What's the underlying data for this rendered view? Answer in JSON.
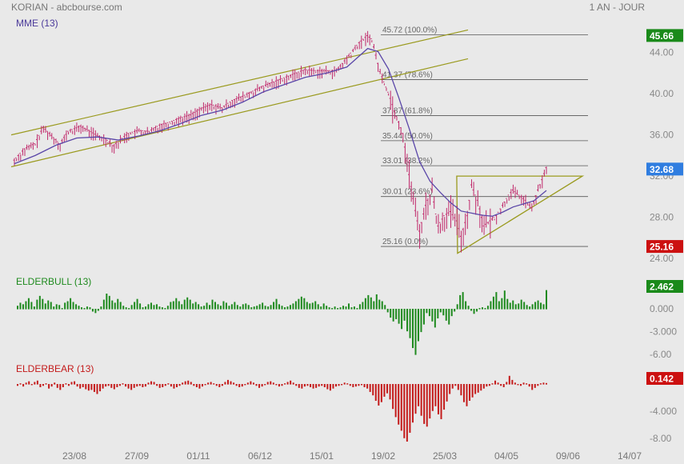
{
  "header": {
    "title": "KORIAN - abcbourse.com",
    "period": "1 AN - JOUR"
  },
  "chart_data": [
    {
      "panel": "price",
      "type": "candlestick",
      "indicator_label": "MME (13)",
      "ylim": [
        24,
        46
      ],
      "yticks": [
        "44.00",
        "40.00",
        "36.00",
        "32.00",
        "28.00",
        "24.00"
      ],
      "last_price": "32.68",
      "badges": [
        {
          "text": "45.66",
          "color": "#1a8a1a",
          "value": 45.66
        },
        {
          "text": "32.68",
          "color": "#2f7de0",
          "value": 32.68
        },
        {
          "text": "25.16",
          "color": "#cc1010",
          "value": 25.16
        }
      ],
      "fibonacci": [
        {
          "price": 45.72,
          "label": "45.72  (100.0%)"
        },
        {
          "price": 41.37,
          "label": "41.37  (78.6%)"
        },
        {
          "price": 37.87,
          "label": "37.87  (61.8%)"
        },
        {
          "price": 35.44,
          "label": "35.44  (50.0%)"
        },
        {
          "price": 33.01,
          "label": "33.01  (38.2%)"
        },
        {
          "price": 30.01,
          "label": "30.01  (23.6%)"
        },
        {
          "price": 25.16,
          "label": "25.16  (0.0%)"
        }
      ],
      "price_path": [
        [
          0,
          33.4
        ],
        [
          5,
          34.5
        ],
        [
          10,
          35.0
        ],
        [
          14,
          36.6
        ],
        [
          18,
          35.8
        ],
        [
          22,
          35.0
        ],
        [
          26,
          36.2
        ],
        [
          32,
          36.7
        ],
        [
          36,
          36.3
        ],
        [
          40,
          35.8
        ],
        [
          44,
          35.5
        ],
        [
          48,
          34.8
        ],
        [
          50,
          35.2
        ],
        [
          55,
          36.0
        ],
        [
          60,
          36.3
        ],
        [
          65,
          36.2
        ],
        [
          70,
          36.8
        ],
        [
          75,
          37.1
        ],
        [
          80,
          37.5
        ],
        [
          85,
          37.8
        ],
        [
          90,
          38.4
        ],
        [
          95,
          38.8
        ],
        [
          100,
          38.5
        ],
        [
          105,
          39.2
        ],
        [
          110,
          39.6
        ],
        [
          115,
          40.1
        ],
        [
          120,
          40.6
        ],
        [
          125,
          41.0
        ],
        [
          130,
          41.4
        ],
        [
          135,
          41.8
        ],
        [
          140,
          42.2
        ],
        [
          145,
          42.1
        ],
        [
          150,
          42.1
        ],
        [
          155,
          42.1
        ],
        [
          158,
          42.8
        ],
        [
          162,
          43.8
        ],
        [
          166,
          44.8
        ],
        [
          170,
          45.5
        ],
        [
          172,
          45.2
        ],
        [
          176,
          42.0
        ],
        [
          180,
          40.0
        ],
        [
          183,
          38.2
        ],
        [
          187,
          36.0
        ],
        [
          190,
          32.0
        ],
        [
          193,
          28.5
        ],
        [
          195,
          26.5
        ],
        [
          198,
          29.0
        ],
        [
          201,
          30.5
        ],
        [
          204,
          27.0
        ],
        [
          207,
          28.0
        ],
        [
          210,
          28.4
        ],
        [
          213,
          27.5
        ],
        [
          215,
          26.0
        ],
        [
          218,
          28.0
        ],
        [
          220,
          31.0
        ],
        [
          223,
          29.5
        ],
        [
          226,
          27.0
        ],
        [
          229,
          27.5
        ],
        [
          232,
          28.0
        ],
        [
          235,
          29.0
        ],
        [
          238,
          30.0
        ],
        [
          240,
          30.5
        ],
        [
          243,
          30.0
        ],
        [
          246,
          29.5
        ],
        [
          249,
          28.8
        ],
        [
          252,
          30.5
        ],
        [
          254,
          31.5
        ],
        [
          256,
          32.68
        ]
      ],
      "ema_path": [
        [
          0,
          33.2
        ],
        [
          10,
          34.0
        ],
        [
          20,
          35.0
        ],
        [
          30,
          35.7
        ],
        [
          40,
          35.8
        ],
        [
          50,
          35.5
        ],
        [
          60,
          35.9
        ],
        [
          70,
          36.4
        ],
        [
          80,
          37.1
        ],
        [
          90,
          37.9
        ],
        [
          100,
          38.4
        ],
        [
          110,
          39.2
        ],
        [
          120,
          40.2
        ],
        [
          130,
          40.9
        ],
        [
          140,
          41.6
        ],
        [
          150,
          42.0
        ],
        [
          160,
          42.6
        ],
        [
          170,
          44.4
        ],
        [
          175,
          44.1
        ],
        [
          180,
          42.4
        ],
        [
          185,
          39.6
        ],
        [
          190,
          36.6
        ],
        [
          195,
          33.4
        ],
        [
          200,
          31.5
        ],
        [
          205,
          30.4
        ],
        [
          210,
          29.4
        ],
        [
          215,
          28.6
        ],
        [
          220,
          28.4
        ],
        [
          225,
          28.2
        ],
        [
          230,
          28.1
        ],
        [
          235,
          28.5
        ],
        [
          240,
          29.0
        ],
        [
          245,
          29.3
        ],
        [
          250,
          29.6
        ],
        [
          256,
          30.6
        ]
      ],
      "channel": {
        "upper": [
          [
            0,
            36.0
          ],
          [
            214,
            46.2
          ]
        ],
        "lower": [
          [
            0,
            32.9
          ],
          [
            214,
            43.4
          ]
        ]
      },
      "triangle": [
        [
          209,
          32.0
        ],
        [
          262,
          32.0
        ],
        [
          209,
          24.5
        ]
      ]
    },
    {
      "panel": "elderbull",
      "type": "bar",
      "indicator_label": "ELDERBULL (13)",
      "color": "#1e8a1e",
      "ylim": [
        -7.2,
        3.6
      ],
      "yticks": [
        "0.000",
        "-3.000",
        "-6.00"
      ],
      "last_value": "2.462",
      "badge_color": "#1a8a1a",
      "values": [
        0.4,
        0.8,
        0.6,
        1.0,
        1.4,
        0.9,
        0.3,
        1.2,
        1.7,
        1.3,
        0.7,
        1.1,
        0.9,
        0.3,
        0.6,
        0.5,
        0.1,
        0.8,
        1.0,
        1.4,
        0.9,
        0.6,
        0.4,
        0.2,
        0.1,
        0.3,
        0.2,
        -0.3,
        -0.5,
        -0.2,
        0.3,
        1.2,
        2.0,
        1.7,
        1.1,
        0.8,
        1.3,
        0.9,
        0.4,
        0.2,
        0.1,
        0.5,
        0.9,
        1.3,
        0.7,
        0.2,
        0.3,
        0.6,
        0.8,
        0.5,
        0.6,
        0.3,
        0.2,
        0.1,
        0.4,
        0.9,
        1.0,
        1.4,
        1.0,
        0.6,
        1.2,
        1.5,
        1.2,
        0.7,
        0.9,
        0.6,
        0.3,
        0.4,
        0.8,
        0.5,
        1.2,
        0.9,
        0.6,
        0.4,
        1.0,
        0.8,
        0.4,
        0.6,
        0.9,
        0.5,
        0.3,
        0.6,
        0.7,
        0.5,
        0.2,
        0.3,
        0.4,
        0.6,
        0.8,
        0.4,
        0.3,
        0.5,
        0.9,
        1.3,
        0.6,
        0.4,
        0.2,
        0.3,
        0.5,
        0.7,
        1.0,
        1.3,
        1.6,
        1.4,
        0.9,
        0.7,
        0.8,
        1.0,
        0.6,
        0.3,
        0.7,
        0.4,
        0.2,
        0.1,
        0.3,
        0.1,
        0.2,
        0.4,
        0.3,
        0.7,
        0.2,
        0.3,
        0.1,
        0.6,
        0.9,
        1.4,
        1.8,
        1.5,
        1.0,
        1.9,
        1.2,
        1.0,
        0.5,
        -0.4,
        -1.1,
        -1.6,
        -1.3,
        -1.9,
        -2.6,
        -1.5,
        -2.9,
        -3.8,
        -5.1,
        -6.0,
        -4.2,
        -3.0,
        -2.0,
        -0.5,
        -0.9,
        -1.6,
        -2.4,
        -1.2,
        -0.4,
        -0.8,
        -1.5,
        -2.0,
        -0.9,
        -0.3,
        0.6,
        1.8,
        2.2,
        1.0,
        0.4,
        -0.2,
        -0.6,
        -0.3,
        0.1,
        0.2,
        0.1,
        0.4,
        1.0,
        1.6,
        2.2,
        1.0,
        1.4,
        2.4,
        1.3,
        0.8,
        1.1,
        0.6,
        0.7,
        1.2,
        0.9,
        0.5,
        0.3,
        0.6,
        0.9,
        1.1,
        0.8,
        0.6,
        2.46
      ]
    },
    {
      "panel": "elderbear",
      "type": "bar",
      "indicator_label": "ELDERBEAR (13)",
      "color": "#c41a1a",
      "ylim": [
        -9.0,
        2.0
      ],
      "yticks": [
        "-4.000",
        "-8.00"
      ],
      "last_value": "0.142",
      "badge_color": "#cc1010",
      "values": [
        -0.2,
        0.1,
        -0.3,
        0.2,
        0.4,
        -0.1,
        0.3,
        0.5,
        -0.4,
        -0.2,
        0.1,
        -0.6,
        -0.3,
        0.2,
        -0.5,
        -0.8,
        -0.4,
        0.1,
        -0.2,
        0.3,
        0.4,
        -0.3,
        -0.6,
        -0.4,
        -0.7,
        -0.9,
        -0.8,
        -1.1,
        -1.4,
        -1.0,
        -0.6,
        -0.3,
        -0.2,
        -0.5,
        -0.7,
        -0.4,
        -0.2,
        0.1,
        -0.3,
        -0.6,
        -0.8,
        -0.5,
        -0.3,
        -0.2,
        -0.4,
        -0.3,
        0.2,
        0.4,
        0.3,
        -0.2,
        -0.5,
        -0.4,
        -0.2,
        0.1,
        -0.3,
        -0.6,
        -0.4,
        -0.2,
        0.2,
        0.4,
        0.5,
        0.3,
        -0.2,
        -0.4,
        -0.6,
        -0.3,
        -0.1,
        0.2,
        0.3,
        0.1,
        -0.2,
        -0.4,
        -0.2,
        0.3,
        0.6,
        0.4,
        0.2,
        -0.2,
        -0.4,
        -0.3,
        -0.1,
        0.2,
        0.4,
        0.2,
        -0.2,
        -0.5,
        -0.3,
        -0.1,
        0.3,
        0.4,
        0.2,
        -0.1,
        -0.3,
        -0.2,
        0.1,
        0.3,
        0.5,
        0.2,
        -0.2,
        -0.5,
        -0.6,
        -0.3,
        -0.2,
        -0.4,
        -0.6,
        -0.5,
        -0.3,
        -0.2,
        -0.4,
        -0.7,
        -0.9,
        -0.6,
        -0.3,
        -0.2,
        -0.1,
        0.2,
        0.1,
        -0.2,
        -0.4,
        -0.3,
        -0.2,
        -0.1,
        -0.4,
        -0.6,
        -1.1,
        -1.6,
        -2.4,
        -3.1,
        -2.6,
        -1.8,
        -1.3,
        -2.2,
        -3.6,
        -4.8,
        -5.9,
        -6.8,
        -7.9,
        -8.4,
        -7.1,
        -5.6,
        -4.3,
        -3.2,
        -4.6,
        -5.8,
        -6.2,
        -5.0,
        -3.9,
        -3.2,
        -4.4,
        -5.1,
        -3.7,
        -2.5,
        -1.4,
        -0.6,
        -0.2,
        -0.8,
        -1.6,
        -2.6,
        -3.2,
        -2.4,
        -1.9,
        -1.4,
        -1.2,
        -0.9,
        -0.6,
        -0.3,
        -0.2,
        0.1,
        0.5,
        0.2,
        -0.2,
        -0.4,
        0.3,
        1.2,
        0.6,
        0.2,
        -0.1,
        -0.2,
        0.2,
        0.1,
        -0.3,
        -0.8,
        -0.5,
        -0.2,
        0.1,
        0.2,
        0.14
      ]
    }
  ],
  "x_axis": {
    "labels": [
      "23/08",
      "27/09",
      "01/11",
      "06/12",
      "15/01",
      "19/02",
      "25/03",
      "04/05",
      "09/06",
      "14/07"
    ]
  }
}
